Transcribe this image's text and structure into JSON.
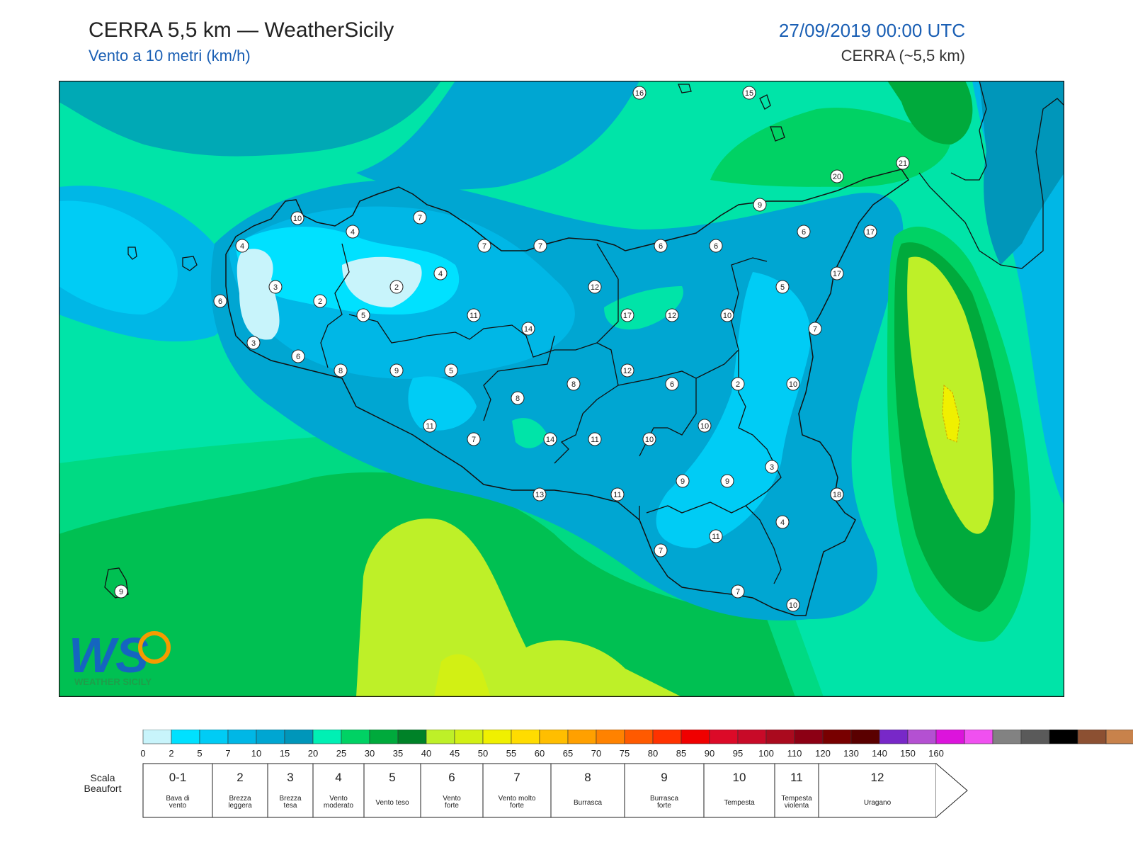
{
  "header": {
    "title": "CERRA 5,5 km — WeatherSicily",
    "subtitle": "Vento a 10 metri (km/h)",
    "datetime": "27/09/2019 00:00 UTC",
    "model": "CERRA (~5,5 km)"
  },
  "logo": {
    "letters": "WS",
    "text": "WEATHER SICILY"
  },
  "colorbar": {
    "colors": [
      "#c8f4fb",
      "#00e1ff",
      "#00ccf5",
      "#00b7e6",
      "#00a6d2",
      "#0096ba",
      "#00f0b4",
      "#00d264",
      "#00aa3c",
      "#008228",
      "#bef028",
      "#d2f014",
      "#f0f000",
      "#ffdc00",
      "#ffbe00",
      "#ffa000",
      "#ff8200",
      "#ff5a00",
      "#ff3200",
      "#f00000",
      "#dc0a28",
      "#c80a28",
      "#aa0a1e",
      "#8c0014",
      "#780000",
      "#5a0000",
      "#7828c8",
      "#b450d2",
      "#dc14dc",
      "#f050f0",
      "#828282",
      "#5a5a5a",
      "#000000",
      "#8c5032",
      "#c8824b"
    ],
    "ticks": [
      "0",
      "2",
      "5",
      "7",
      "10",
      "15",
      "20",
      "25",
      "30",
      "35",
      "40",
      "45",
      "50",
      "55",
      "60",
      "65",
      "70",
      "75",
      "80",
      "85",
      "90",
      "95",
      "100",
      "110",
      "120",
      "130",
      "140",
      "150",
      "160"
    ]
  },
  "beaufort": {
    "label_line1": "Scala",
    "label_line2": "Beaufort",
    "classes": [
      {
        "num": "0-1",
        "desc": [
          "Bava di",
          "vento"
        ]
      },
      {
        "num": "2",
        "desc": [
          "Brezza",
          "leggera"
        ]
      },
      {
        "num": "3",
        "desc": [
          "Brezza",
          "tesa"
        ]
      },
      {
        "num": "4",
        "desc": [
          "Vento",
          "moderato"
        ]
      },
      {
        "num": "5",
        "desc": [
          "Vento teso"
        ]
      },
      {
        "num": "6",
        "desc": [
          "Vento",
          "forte"
        ]
      },
      {
        "num": "7",
        "desc": [
          "Vento molto",
          "forte"
        ]
      },
      {
        "num": "8",
        "desc": [
          "Burrasca"
        ]
      },
      {
        "num": "9",
        "desc": [
          "Burrasca",
          "forte"
        ]
      },
      {
        "num": "10",
        "desc": [
          "Tempesta"
        ]
      },
      {
        "num": "11",
        "desc": [
          "Tempesta",
          "violenta"
        ]
      },
      {
        "num": "12",
        "desc": [
          "Uragano"
        ]
      }
    ]
  },
  "stations": [
    "16",
    "15",
    "21",
    "20",
    "10",
    "4",
    "7",
    "4",
    "9",
    "6",
    "7",
    "7",
    "6",
    "6",
    "17",
    "17",
    "3",
    "2",
    "2",
    "4",
    "6",
    "5",
    "12",
    "11",
    "14",
    "17",
    "12",
    "10",
    "5",
    "7",
    "3",
    "6",
    "8",
    "9",
    "5",
    "8",
    "12",
    "6",
    "2",
    "10",
    "8",
    "10",
    "11",
    "14",
    "7",
    "11",
    "10",
    "10",
    "11",
    "13",
    "9",
    "9",
    "3",
    "6",
    "11",
    "4",
    "7",
    "7",
    "10",
    "9",
    "18"
  ]
}
